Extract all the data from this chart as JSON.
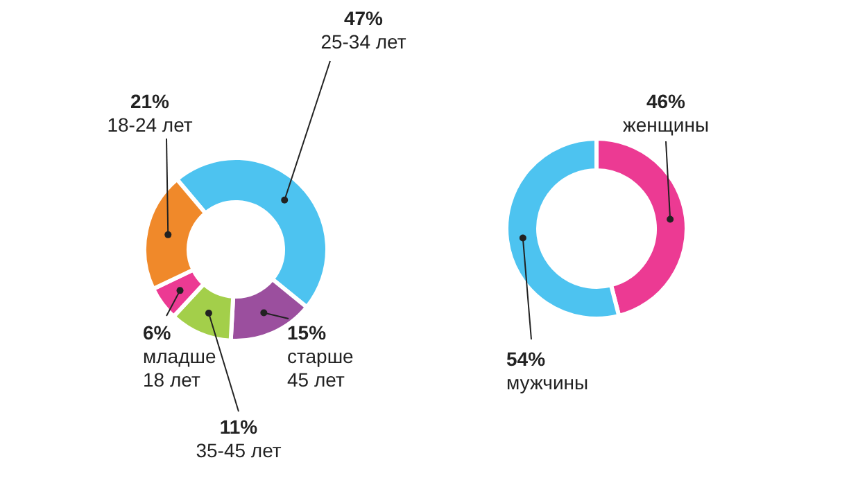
{
  "chart_data": [
    {
      "type": "donut",
      "categories": [
        "25-34 лет",
        "старше 45 лет",
        "35-45 лет",
        "младше 18 лет",
        "18-24 лет"
      ],
      "values": [
        47,
        15,
        11,
        6,
        21
      ],
      "value_labels": [
        "47%",
        "15%",
        "11%",
        "6%",
        "21%"
      ],
      "colors": [
        "#4dc3f0",
        "#9b4f9e",
        "#a3cf4a",
        "#ec3a93",
        "#f0892a"
      ]
    },
    {
      "type": "donut",
      "categories": [
        "женщины",
        "мужчины"
      ],
      "values": [
        46,
        54
      ],
      "value_labels": [
        "46%",
        "54%"
      ],
      "colors": [
        "#ec3a93",
        "#4dc3f0"
      ]
    }
  ]
}
